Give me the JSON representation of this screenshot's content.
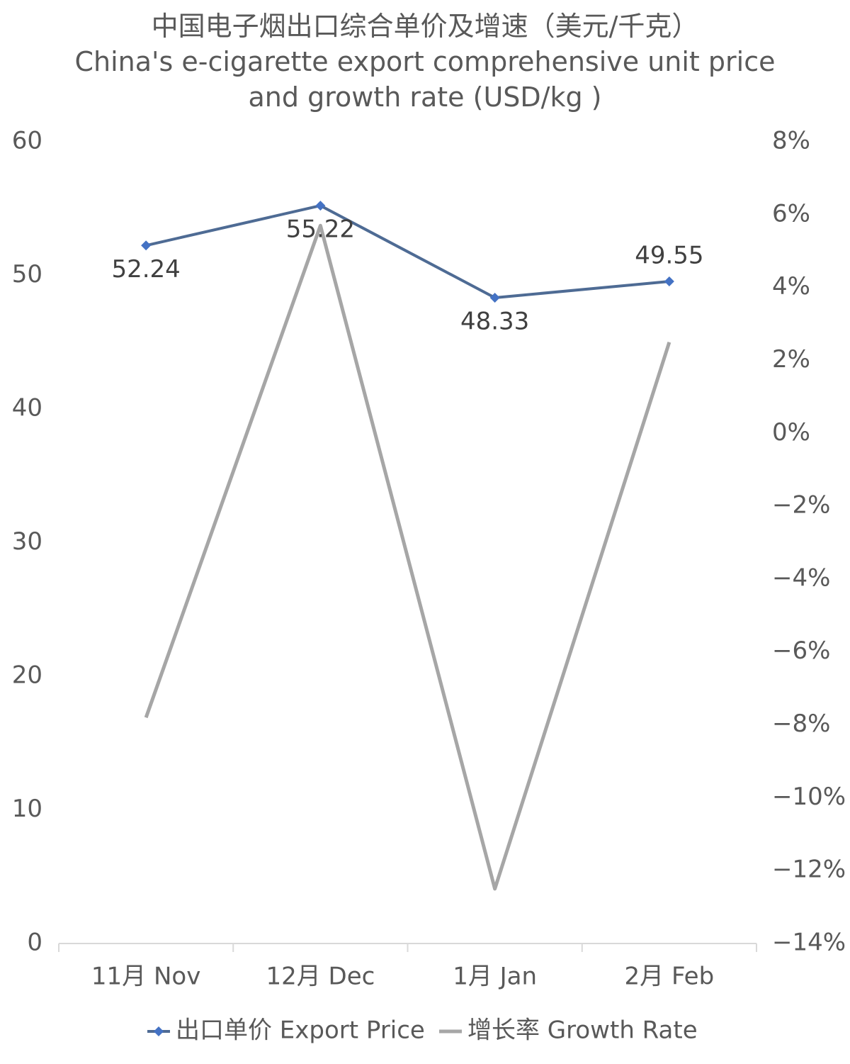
{
  "chart_data": {
    "type": "line",
    "title": "中国电子烟出口综合单价及增速（美元/千克）",
    "subtitle": "China's e-cigarette export comprehensive unit price and growth rate (USD/kg )",
    "categories": [
      "11月 Nov",
      "12月 Dec",
      "1月 Jan",
      "2月 Feb"
    ],
    "series": [
      {
        "name": "出口单价 Export Price",
        "color": "#4e6b94",
        "marker_color": "#4472c4",
        "values": [
          52.24,
          55.22,
          48.33,
          49.55
        ]
      },
      {
        "name": "增长率 Growth Rate",
        "color": "#a6a6a6",
        "axis": "y2",
        "values": [
          -7.8,
          5.7,
          -12.5,
          2.5
        ]
      }
    ],
    "ylim": [
      0,
      60
    ],
    "yticks": [
      0,
      10,
      20,
      30,
      40,
      50,
      60
    ],
    "y2lim": [
      -14,
      8
    ],
    "y2ticks": [
      {
        "value": -14,
        "label": "−14%"
      },
      {
        "value": -12,
        "label": "−12%"
      },
      {
        "value": -10,
        "label": "−10%"
      },
      {
        "value": -8,
        "label": "−8%"
      },
      {
        "value": -6,
        "label": "−6%"
      },
      {
        "value": -4,
        "label": "−4%"
      },
      {
        "value": -2,
        "label": "−2%"
      },
      {
        "value": 0,
        "label": "0%"
      },
      {
        "value": 2,
        "label": "2%"
      },
      {
        "value": 4,
        "label": "4%"
      },
      {
        "value": 6,
        "label": "6%"
      },
      {
        "value": 8,
        "label": "8%"
      }
    ],
    "legend": "bottom"
  }
}
